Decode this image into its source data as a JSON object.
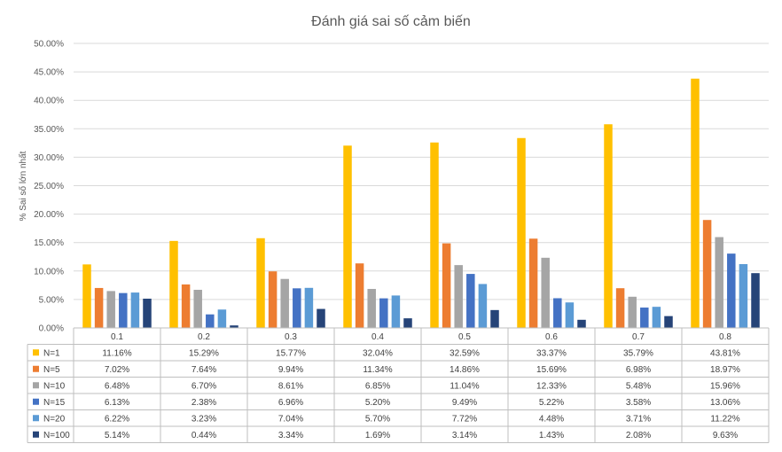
{
  "chart_data": {
    "type": "bar",
    "title": "Đánh giá  sai số cảm biến",
    "ylabel": "% Sai số lớn nhất",
    "xlabel": "",
    "ylim": [
      0,
      50
    ],
    "yticks": [
      "0.00%",
      "5.00%",
      "10.00%",
      "15.00%",
      "20.00%",
      "25.00%",
      "30.00%",
      "35.00%",
      "40.00%",
      "45.00%",
      "50.00%"
    ],
    "categories": [
      "0.1",
      "0.2",
      "0.3",
      "0.4",
      "0.5",
      "0.6",
      "0.7",
      "0.8"
    ],
    "grid": true,
    "legend": "data-table",
    "series": [
      {
        "name": "N=1",
        "color": "#FFC000",
        "values": [
          11.16,
          15.29,
          15.77,
          32.04,
          32.59,
          33.37,
          35.79,
          43.81
        ],
        "labels": [
          "11.16%",
          "15.29%",
          "15.77%",
          "32.04%",
          "32.59%",
          "33.37%",
          "35.79%",
          "43.81%"
        ]
      },
      {
        "name": "N=5",
        "color": "#ED7D31",
        "values": [
          7.02,
          7.64,
          9.94,
          11.34,
          14.86,
          15.69,
          6.98,
          18.97
        ],
        "labels": [
          "7.02%",
          "7.64%",
          "9.94%",
          "11.34%",
          "14.86%",
          "15.69%",
          "6.98%",
          "18.97%"
        ]
      },
      {
        "name": "N=10",
        "color": "#A5A5A5",
        "values": [
          6.48,
          6.7,
          8.61,
          6.85,
          11.04,
          12.33,
          5.48,
          15.96
        ],
        "labels": [
          "6.48%",
          "6.70%",
          "8.61%",
          "6.85%",
          "11.04%",
          "12.33%",
          "5.48%",
          "15.96%"
        ]
      },
      {
        "name": "N=15",
        "color": "#4472C4",
        "values": [
          6.13,
          2.38,
          6.96,
          5.2,
          9.49,
          5.22,
          3.58,
          13.06
        ],
        "labels": [
          "6.13%",
          "2.38%",
          "6.96%",
          "5.20%",
          "9.49%",
          "5.22%",
          "3.58%",
          "13.06%"
        ]
      },
      {
        "name": "N=20",
        "color": "#5B9BD5",
        "values": [
          6.22,
          3.23,
          7.04,
          5.7,
          7.72,
          4.48,
          3.71,
          11.22
        ],
        "labels": [
          "6.22%",
          "3.23%",
          "7.04%",
          "5.70%",
          "7.72%",
          "4.48%",
          "3.71%",
          "11.22%"
        ]
      },
      {
        "name": "N=100",
        "color": "#264478",
        "values": [
          5.14,
          0.44,
          3.34,
          1.69,
          3.14,
          1.43,
          2.08,
          9.63
        ],
        "labels": [
          "5.14%",
          "0.44%",
          "3.34%",
          "1.69%",
          "3.14%",
          "1.43%",
          "2.08%",
          "9.63%"
        ]
      }
    ]
  }
}
